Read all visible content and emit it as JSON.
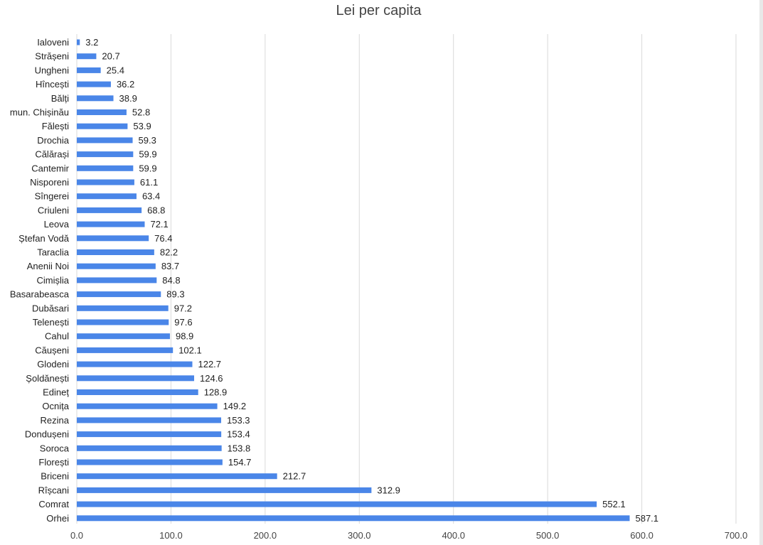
{
  "chart_data": {
    "type": "bar",
    "orientation": "horizontal",
    "title": "Lei per capita",
    "xlabel": "",
    "ylabel": "",
    "xlim": [
      0,
      700
    ],
    "x_ticks": [
      "0.0",
      "100.0",
      "200.0",
      "300.0",
      "400.0",
      "500.0",
      "600.0",
      "700.0"
    ],
    "grid": "vertical",
    "legend": "none",
    "bar_color": "#4a86e8",
    "categories": [
      "Ialoveni",
      "Strășeni",
      "Ungheni",
      "Hîncești",
      "Bălți",
      "mun. Chișinău",
      "Fălești",
      "Drochia",
      "Călărași",
      "Cantemir",
      "Nisporeni",
      "Sîngerei",
      "Criuleni",
      "Leova",
      "Ștefan Vodă",
      "Taraclia",
      "Anenii Noi",
      "Cimișlia",
      "Basarabeasca",
      "Dubăsari",
      "Telenești",
      "Cahul",
      "Căușeni",
      "Glodeni",
      "Șoldănești",
      "Edineț",
      "Ocnița",
      "Rezina",
      "Dondușeni",
      "Soroca",
      "Florești",
      "Briceni",
      "Rîșcani",
      "Comrat",
      "Orhei"
    ],
    "values": [
      3.2,
      20.7,
      25.4,
      36.2,
      38.9,
      52.8,
      53.9,
      59.3,
      59.9,
      59.9,
      61.1,
      63.4,
      68.8,
      72.1,
      76.4,
      82.2,
      83.7,
      84.8,
      89.3,
      97.2,
      97.6,
      98.9,
      102.1,
      122.7,
      124.6,
      128.9,
      149.2,
      153.3,
      153.4,
      153.8,
      154.7,
      212.7,
      312.9,
      552.1,
      587.1
    ],
    "value_labels": [
      "3.2",
      "20.7",
      "25.4",
      "36.2",
      "38.9",
      "52.8",
      "53.9",
      "59.3",
      "59.9",
      "59.9",
      "61.1",
      "63.4",
      "68.8",
      "72.1",
      "76.4",
      "82.2",
      "83.7",
      "84.8",
      "89.3",
      "97.2",
      "97.6",
      "98.9",
      "102.1",
      "122.7",
      "124.6",
      "128.9",
      "149.2",
      "153.3",
      "153.4",
      "153.8",
      "154.7",
      "212.7",
      "312.9",
      "552.1",
      "587.1"
    ]
  }
}
